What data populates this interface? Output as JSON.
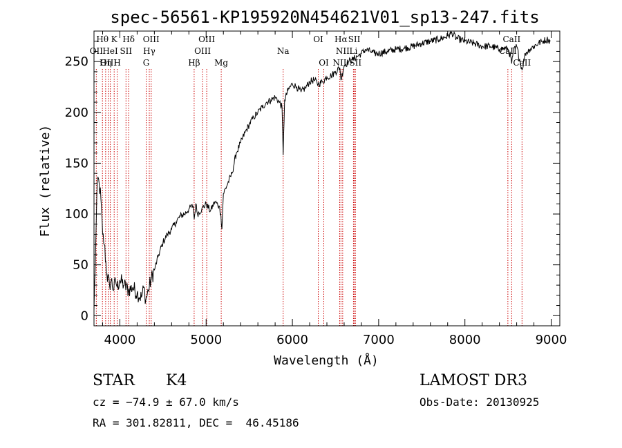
{
  "chart_data": {
    "type": "line",
    "title": "spec-56561-KP195920N454621V01_sp13-247.fits",
    "xlabel": "Wavelength (Å)",
    "ylabel": "Flux (relative)",
    "xlim": [
      3700,
      9100
    ],
    "ylim": [
      -10,
      280
    ],
    "xticks": [
      4000,
      5000,
      6000,
      7000,
      8000,
      9000
    ],
    "yticks": [
      0,
      50,
      100,
      150,
      200,
      250
    ],
    "grid": false,
    "series": [
      {
        "x": [
          3700,
          3720,
          3740,
          3760,
          3780,
          3800,
          3820,
          3850,
          3880,
          3900,
          3930,
          3950,
          3970,
          4000,
          4050,
          4100,
          4150,
          4200,
          4250,
          4280,
          4300,
          4330,
          4360,
          4400,
          4450,
          4500,
          4550,
          4600,
          4650,
          4700,
          4750,
          4800,
          4850,
          4862,
          4880,
          4900,
          4950,
          5000,
          5050,
          5100,
          5150,
          5170,
          5183,
          5200,
          5250,
          5300,
          5350,
          5400,
          5450,
          5500,
          5550,
          5600,
          5650,
          5700,
          5750,
          5800,
          5850,
          5880,
          5893,
          5910,
          5950,
          6000,
          6050,
          6100,
          6150,
          6200,
          6250,
          6300,
          6350,
          6400,
          6450,
          6500,
          6550,
          6563,
          6600,
          6650,
          6700,
          6750,
          6800,
          6850,
          6900,
          6950,
          7000,
          7100,
          7200,
          7300,
          7400,
          7500,
          7600,
          7700,
          7800,
          7850,
          7900,
          8000,
          8100,
          8200,
          8300,
          8400,
          8450,
          8500,
          8530,
          8542,
          8560,
          8600,
          8640,
          8662,
          8700,
          8750,
          8800,
          8850,
          8900,
          8950,
          8990
        ],
        "y": [
          5,
          70,
          135,
          130,
          115,
          80,
          70,
          40,
          30,
          35,
          25,
          35,
          28,
          35,
          30,
          25,
          28,
          22,
          18,
          28,
          15,
          25,
          35,
          45,
          60,
          72,
          80,
          85,
          92,
          98,
          100,
          105,
          108,
          95,
          110,
          100,
          105,
          110,
          103,
          112,
          108,
          100,
          85,
          120,
          130,
          140,
          160,
          170,
          180,
          188,
          195,
          200,
          205,
          210,
          212,
          215,
          210,
          205,
          158,
          212,
          222,
          228,
          225,
          220,
          224,
          230,
          232,
          228,
          230,
          235,
          236,
          240,
          244,
          232,
          246,
          250,
          252,
          255,
          258,
          262,
          260,
          258,
          258,
          260,
          262,
          263,
          265,
          268,
          270,
          272,
          275,
          278,
          273,
          270,
          268,
          265,
          265,
          262,
          263,
          262,
          255,
          248,
          260,
          265,
          250,
          242,
          258,
          262,
          265,
          268,
          270,
          272,
          270
        ]
      }
    ],
    "lines": [
      {
        "label": "Hθ",
        "wave": 3798,
        "row": 0
      },
      {
        "label": "OII",
        "wave": 3727,
        "row": 1
      },
      {
        "label": "OIII",
        "wave": 3869,
        "row": 2
      },
      {
        "label": "K",
        "wave": 3934,
        "row": 0
      },
      {
        "label": "HeI",
        "wave": 3889,
        "row": 1
      },
      {
        "label": "Hη",
        "wave": 3835,
        "row": 2
      },
      {
        "label": "Hδ",
        "wave": 4102,
        "row": 0
      },
      {
        "label": "SII",
        "wave": 4071,
        "row": 1
      },
      {
        "label": "H",
        "wave": 3969,
        "row": 2
      },
      {
        "label": "OIII",
        "wave": 4363,
        "row": 0
      },
      {
        "label": "Hγ",
        "wave": 4341,
        "row": 1
      },
      {
        "label": "G",
        "wave": 4305,
        "row": 2
      },
      {
        "label": "OIII",
        "wave": 5007,
        "row": 0
      },
      {
        "label": "OIII",
        "wave": 4959,
        "row": 1
      },
      {
        "label": "Hβ",
        "wave": 4861,
        "row": 2
      },
      {
        "label": "Mg",
        "wave": 5175,
        "row": 2
      },
      {
        "label": "Na",
        "wave": 5893,
        "row": 1
      },
      {
        "label": "OI",
        "wave": 6300,
        "row": 0
      },
      {
        "label": "OI",
        "wave": 6364,
        "row": 2
      },
      {
        "label": "Hα",
        "wave": 6563,
        "row": 0
      },
      {
        "label": "SII",
        "wave": 6717,
        "row": 0
      },
      {
        "label": "NII",
        "wave": 6583,
        "row": 1
      },
      {
        "label": "Li",
        "wave": 6708,
        "row": 1
      },
      {
        "label": "NII",
        "wave": 6548,
        "row": 2
      },
      {
        "label": "SII",
        "wave": 6731,
        "row": 2
      },
      {
        "label": "CaII",
        "wave": 8542,
        "row": 0
      },
      {
        "label": "CaII",
        "wave": 8498,
        "row": 1
      },
      {
        "label": "CaII",
        "wave": 8662,
        "row": 2
      }
    ]
  },
  "info": {
    "object_class": "STAR",
    "subclass": "K4",
    "survey": "LAMOST DR3",
    "cz": "cz = −74.9 ± 67.0 km/s",
    "obs_date": "Obs-Date: 20130925",
    "coords": "RA = 301.82811, DEC =  46.45186"
  }
}
